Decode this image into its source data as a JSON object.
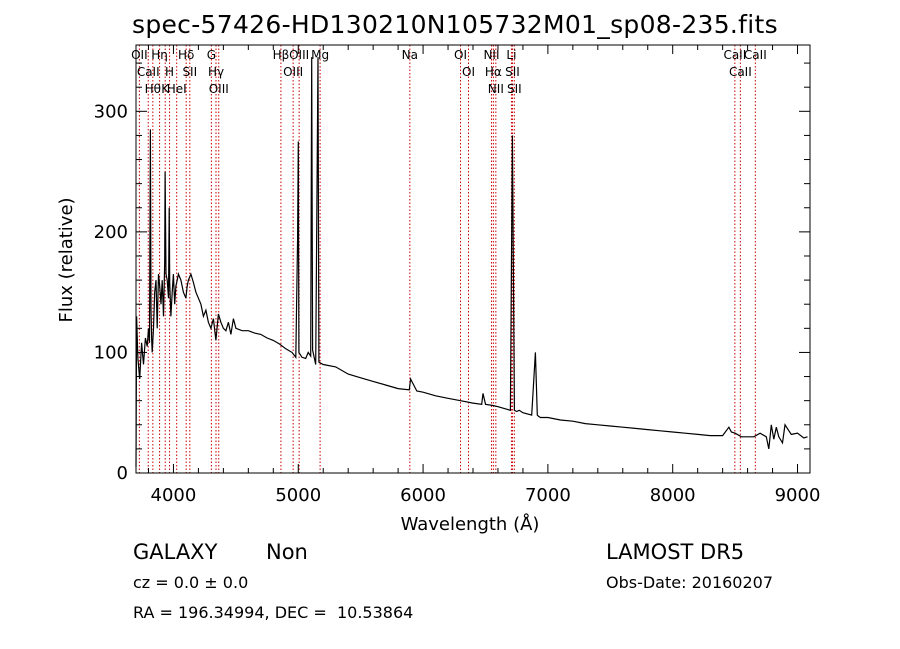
{
  "chart_data": {
    "type": "line",
    "title": "spec-57426-HD130210N105732M01_sp08-235.fits",
    "xlabel": "Wavelength (Å)",
    "ylabel": "Flux (relative)",
    "xlim": [
      3700,
      9100
    ],
    "ylim": [
      0,
      355
    ],
    "xticks": [
      4000,
      5000,
      6000,
      7000,
      8000,
      9000
    ],
    "yticks": [
      0,
      100,
      200,
      300
    ],
    "grid": false,
    "series": [
      {
        "x": [
          3700,
          3705,
          3715,
          3730,
          3745,
          3760,
          3775,
          3790,
          3800,
          3808,
          3815,
          3820,
          3826,
          3830,
          3840,
          3850,
          3860,
          3870,
          3880,
          3890,
          3900,
          3910,
          3920,
          3930,
          3933,
          3940,
          3950,
          3960,
          3966,
          3970,
          3980,
          3990,
          4000,
          4010,
          4020,
          4030,
          4040,
          4060,
          4080,
          4100,
          4110,
          4120,
          4140,
          4160,
          4180,
          4200,
          4220,
          4240,
          4260,
          4280,
          4300,
          4320,
          4340,
          4360,
          4380,
          4400,
          4420,
          4440,
          4460,
          4480,
          4500,
          4550,
          4600,
          4650,
          4700,
          4750,
          4800,
          4850,
          4900,
          4950,
          4980,
          4995,
          5000,
          5005,
          5030,
          5060,
          5080,
          5100,
          5108,
          5115,
          5140,
          5158,
          5165,
          5200,
          5300,
          5400,
          5500,
          5600,
          5700,
          5800,
          5890,
          5900,
          5950,
          6000,
          6100,
          6200,
          6300,
          6400,
          6470,
          6480,
          6500,
          6560,
          6600,
          6700,
          6716,
          6732,
          6750,
          6770,
          6800,
          6870,
          6900,
          6915,
          6925,
          6940,
          7000,
          7100,
          7200,
          7300,
          7400,
          7500,
          7600,
          7700,
          7800,
          7900,
          8000,
          8100,
          8200,
          8300,
          8400,
          8450,
          8470,
          8500,
          8550,
          8600,
          8650,
          8700,
          8750,
          8770,
          8790,
          8810,
          8830,
          8850,
          8880,
          8900,
          8950,
          9000,
          9050,
          9080
        ],
        "y": [
          5,
          130,
          95,
          78,
          108,
          90,
          112,
          105,
          120,
          108,
          285,
          135,
          110,
          100,
          120,
          150,
          160,
          120,
          165,
          155,
          140,
          160,
          130,
          175,
          250,
          165,
          160,
          145,
          220,
          158,
          130,
          150,
          165,
          140,
          155,
          160,
          165,
          160,
          150,
          145,
          155,
          160,
          165,
          158,
          150,
          145,
          140,
          130,
          135,
          125,
          120,
          128,
          110,
          132,
          125,
          120,
          118,
          125,
          115,
          128,
          120,
          118,
          118,
          116,
          115,
          112,
          110,
          107,
          103,
          100,
          96,
          195,
          275,
          100,
          96,
          95,
          100,
          97,
          345,
          102,
          90,
          345,
          92,
          90,
          88,
          82,
          79,
          76,
          73,
          70,
          69,
          78,
          68,
          67,
          64,
          62,
          60,
          58,
          57,
          66,
          57,
          56,
          55,
          52,
          280,
          52,
          51,
          52,
          50,
          48,
          100,
          48,
          47,
          46,
          46,
          44,
          43,
          41,
          40,
          39,
          38,
          37,
          36,
          35,
          34,
          33,
          32,
          31,
          31,
          38,
          34,
          33,
          30,
          30,
          30,
          33,
          30,
          20,
          40,
          28,
          38,
          30,
          25,
          40,
          32,
          33,
          29,
          30
        ]
      }
    ],
    "lines": [
      {
        "wave": 3727,
        "label": "OII"
      },
      {
        "wave": 3798,
        "label": "CaII"
      },
      {
        "wave": 3835,
        "label": "Hθ"
      },
      {
        "wave": 3889,
        "label": "Hη"
      },
      {
        "wave": 3934,
        "label": "K"
      },
      {
        "wave": 3969,
        "label": "H"
      },
      {
        "wave": 4026,
        "label": "HeI"
      },
      {
        "wave": 4102,
        "label": "Hδ"
      },
      {
        "wave": 4131,
        "label": "SII"
      },
      {
        "wave": 4304,
        "label": "G"
      },
      {
        "wave": 4341,
        "label": "Hγ"
      },
      {
        "wave": 4363,
        "label": "OIII"
      },
      {
        "wave": 4861,
        "label": "Hβ"
      },
      {
        "wave": 4959,
        "label": "OIII"
      },
      {
        "wave": 5007,
        "label": "OIII"
      },
      {
        "wave": 5175,
        "label": "Mg"
      },
      {
        "wave": 5894,
        "label": "Na"
      },
      {
        "wave": 6300,
        "label": "OI"
      },
      {
        "wave": 6364,
        "label": "OI"
      },
      {
        "wave": 6548,
        "label": "NII"
      },
      {
        "wave": 6563,
        "label": "Hα"
      },
      {
        "wave": 6583,
        "label": "NII"
      },
      {
        "wave": 6708,
        "label": "Li"
      },
      {
        "wave": 6716,
        "label": "SII"
      },
      {
        "wave": 6731,
        "label": "SII"
      },
      {
        "wave": 8498,
        "label": "CaII"
      },
      {
        "wave": 8542,
        "label": "CaII"
      },
      {
        "wave": 8662,
        "label": "CaII"
      }
    ]
  },
  "info": {
    "class": "GALAXY",
    "subclass": "Non",
    "survey": "LAMOST DR5",
    "cz": "cz = 0.0 ± 0.0",
    "obs_date": "Obs-Date: 20160207",
    "coords": "RA = 196.34994, DEC =  10.53864"
  }
}
